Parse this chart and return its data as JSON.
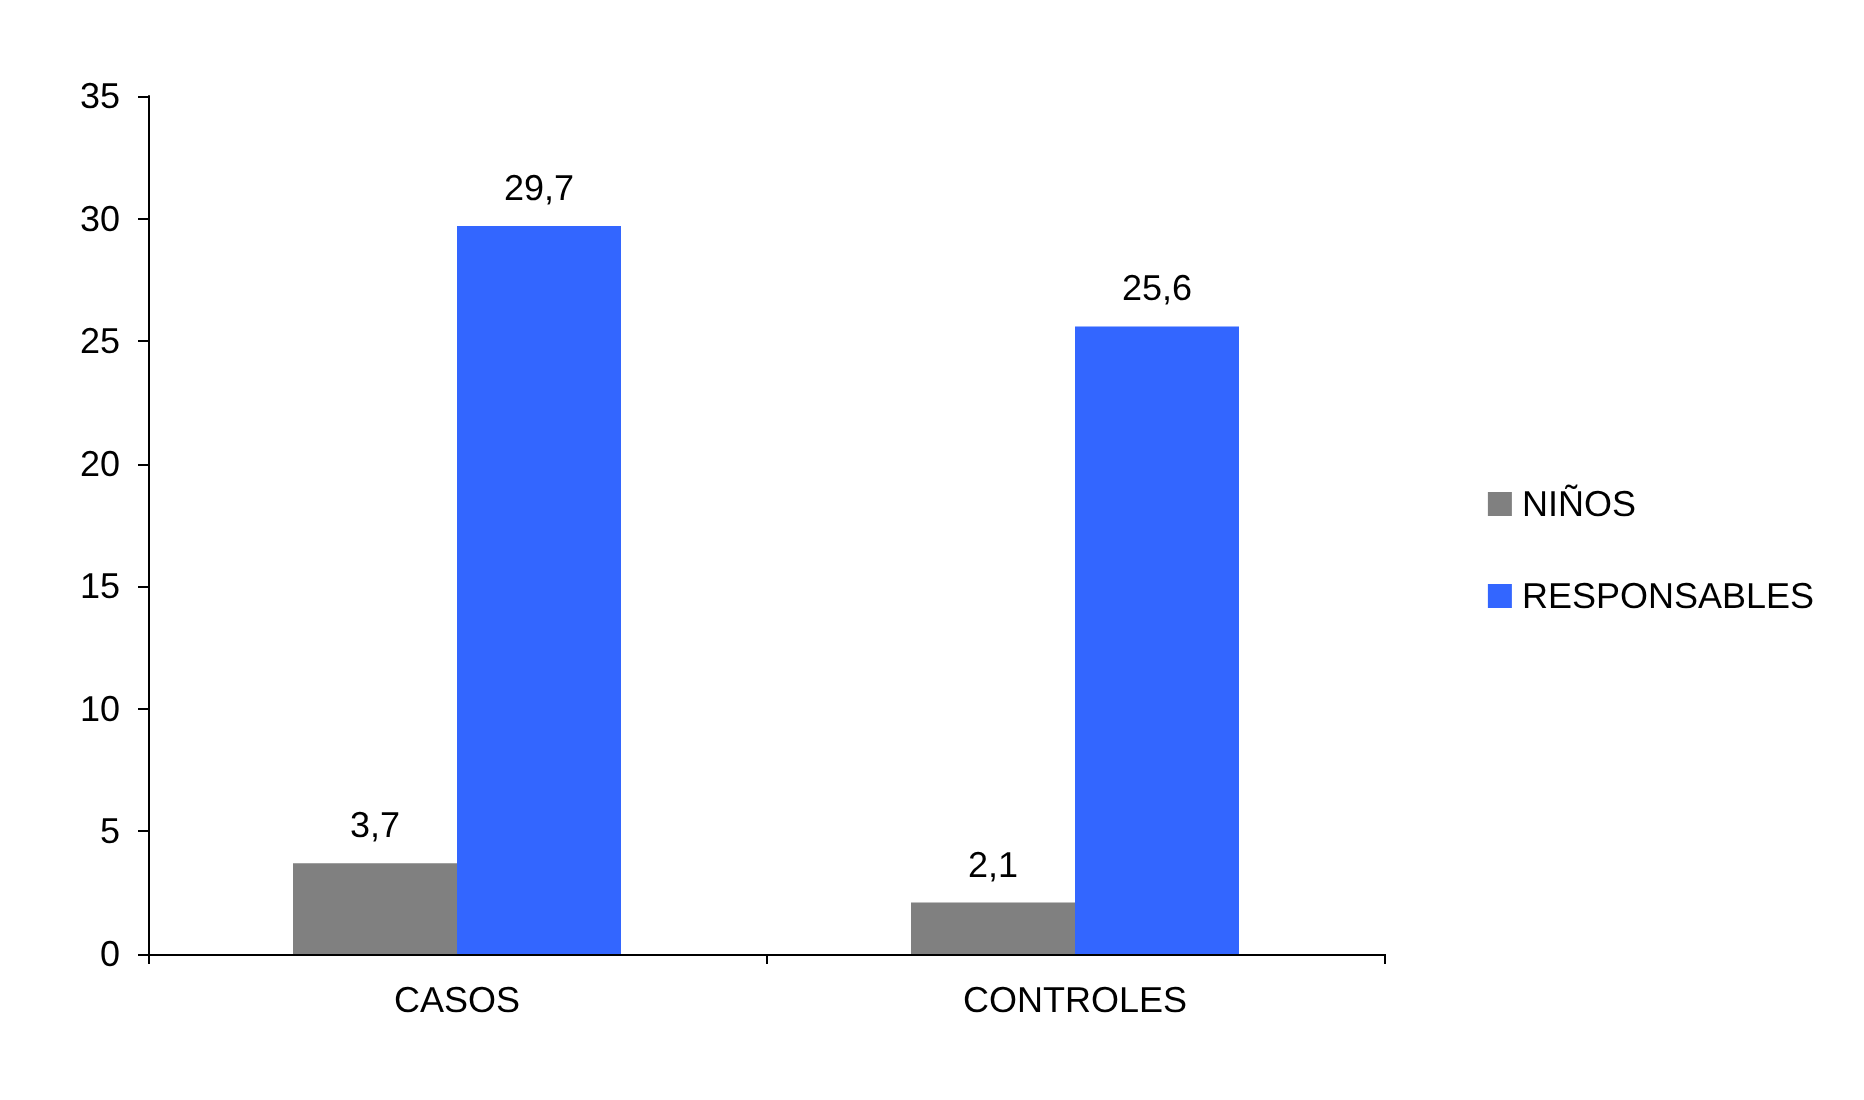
{
  "chart_data": {
    "type": "bar",
    "categories": [
      "CASOS",
      "CONTROLES"
    ],
    "series": [
      {
        "name": "NIÑOS",
        "color": "#808080",
        "values": [
          3.7,
          2.1
        ],
        "value_labels": [
          "3,7",
          "2,1"
        ]
      },
      {
        "name": "RESPONSABLES",
        "color": "#3366ff",
        "values": [
          29.7,
          25.6
        ],
        "value_labels": [
          "29,7",
          "25,6"
        ]
      }
    ],
    "ylim": [
      0,
      35
    ],
    "yticks": [
      0,
      5,
      10,
      15,
      20,
      25,
      30,
      35
    ],
    "grid": false,
    "legend": "right"
  }
}
